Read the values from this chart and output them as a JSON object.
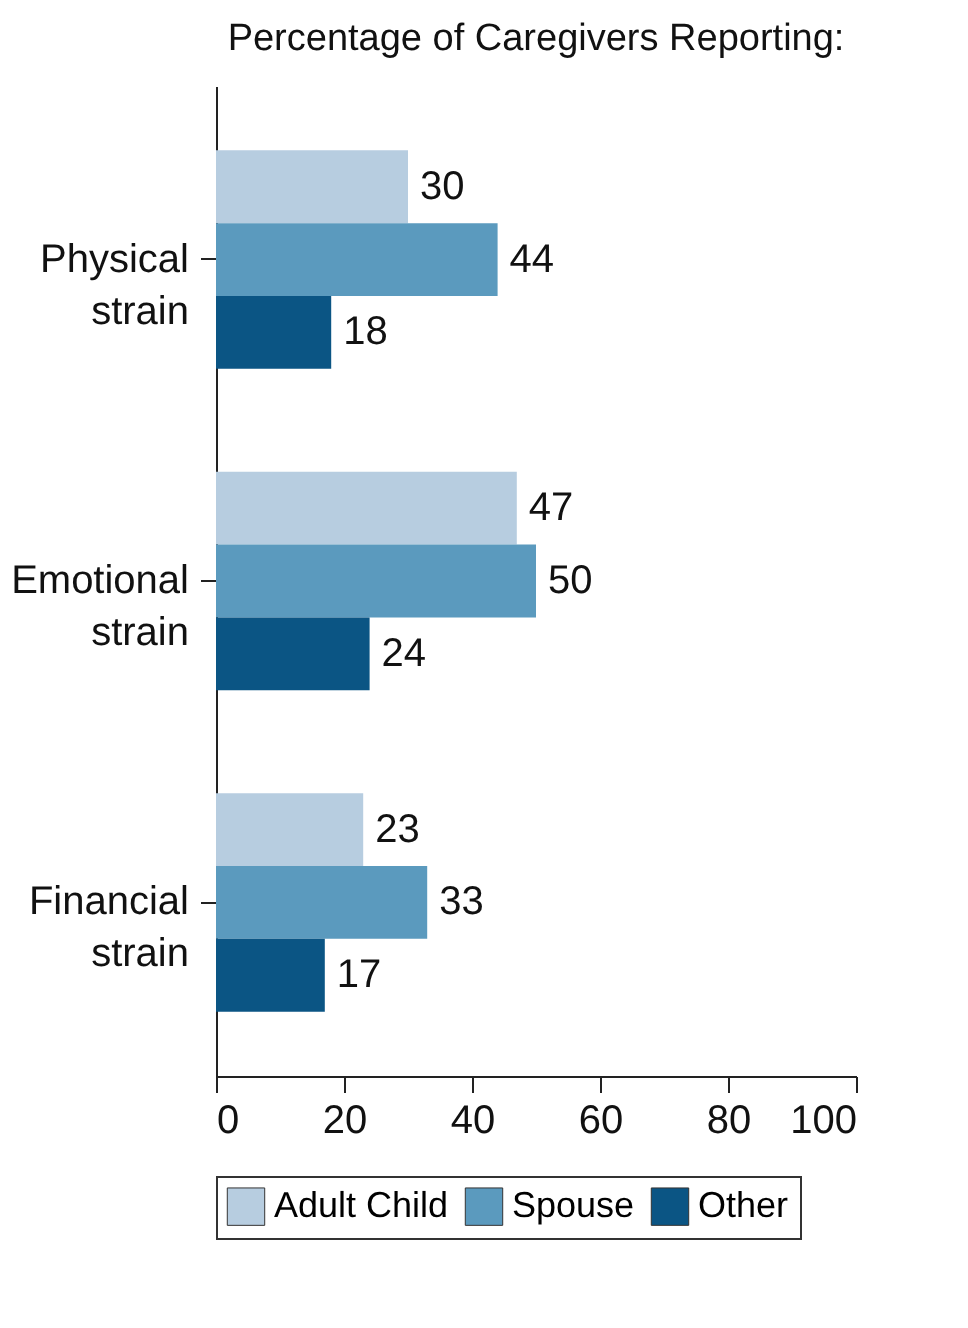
{
  "chart_data": {
    "type": "bar",
    "orientation": "horizontal",
    "title": "Percentage of Caregivers Reporting:",
    "categories": [
      "Physical strain",
      "Emotional strain",
      "Financial strain"
    ],
    "series": [
      {
        "name": "Adult Child",
        "color": "#b7cde0",
        "values": [
          30,
          47,
          23
        ]
      },
      {
        "name": "Spouse",
        "color": "#5b9abe",
        "values": [
          44,
          50,
          33
        ]
      },
      {
        "name": "Other",
        "color": "#0b5584",
        "values": [
          18,
          24,
          17
        ]
      }
    ],
    "xlim": [
      0,
      100
    ],
    "xticks": [
      0,
      20,
      40,
      60,
      80,
      100
    ],
    "data_labels": true,
    "grid": false,
    "legend": "bottom"
  }
}
